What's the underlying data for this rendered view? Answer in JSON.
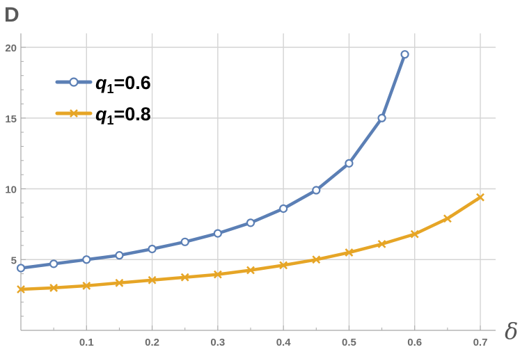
{
  "chart_data": {
    "type": "line",
    "panel_label": "D",
    "title": "",
    "xlabel": "δ",
    "ylabel": "",
    "xlim": [
      0,
      0.7
    ],
    "ylim": [
      0,
      20
    ],
    "x_ticks": [
      0.1,
      0.2,
      0.3,
      0.4,
      0.5,
      0.6,
      0.7
    ],
    "x_tick_labels": [
      "0.1",
      "0.2",
      "0.3",
      "0.4",
      "0.5",
      "0.6",
      "0.7"
    ],
    "y_ticks": [
      5,
      10,
      15,
      20
    ],
    "y_tick_labels": [
      "5",
      "10",
      "15",
      "20"
    ],
    "grid": true,
    "legend_position": "top-left",
    "series": [
      {
        "name_main": "q",
        "name_sub": "1",
        "name_value": "=0.6",
        "color": "#5b7fb5",
        "marker": "circle",
        "x": [
          0,
          0.05,
          0.1,
          0.15,
          0.2,
          0.25,
          0.3,
          0.35,
          0.4,
          0.45,
          0.5,
          0.55,
          0.585
        ],
        "y": [
          4.4,
          4.7,
          5.0,
          5.3,
          5.75,
          6.25,
          6.85,
          7.6,
          8.6,
          9.9,
          11.8,
          15.0,
          19.5
        ]
      },
      {
        "name_main": "q",
        "name_sub": "1",
        "name_value": "=0.8",
        "color": "#e6a526",
        "marker": "cross",
        "x": [
          0,
          0.05,
          0.1,
          0.15,
          0.2,
          0.25,
          0.3,
          0.35,
          0.4,
          0.45,
          0.5,
          0.55,
          0.6,
          0.65,
          0.7
        ],
        "y": [
          2.9,
          3.0,
          3.15,
          3.35,
          3.55,
          3.75,
          3.95,
          4.25,
          4.6,
          5.0,
          5.5,
          6.1,
          6.8,
          7.9,
          9.4
        ]
      }
    ]
  }
}
